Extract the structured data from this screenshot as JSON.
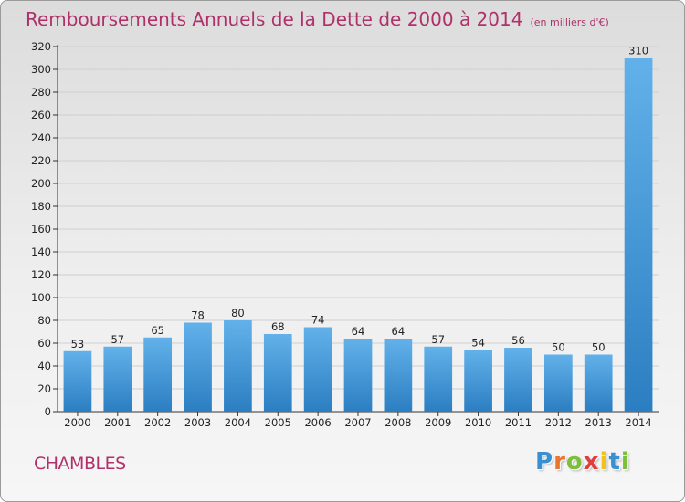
{
  "title": {
    "main": "Remboursements Annuels de la Dette de 2000 à 2014",
    "unit": "(en milliers d'€)"
  },
  "commune": "CHAMBLES",
  "logo": {
    "letters": [
      "P",
      "r",
      "o",
      "x",
      "i",
      "t",
      "i"
    ],
    "colors": [
      "#3a8fd0",
      "#e8762c",
      "#7bbf3a",
      "#e23d3d",
      "#f2c21b",
      "#3a8fd0",
      "#7bbf3a"
    ]
  },
  "colors": {
    "title": "#b0306a",
    "bar_top": "#62b1ea",
    "bar_bottom": "#2b7ec1",
    "grid": "#cfcfcf"
  },
  "chart_data": {
    "type": "bar",
    "title": "Remboursements Annuels de la Dette de 2000 à 2014",
    "xlabel": "",
    "ylabel": "",
    "ylim": [
      0,
      320
    ],
    "yticks": [
      0,
      20,
      40,
      60,
      80,
      100,
      120,
      140,
      160,
      180,
      200,
      220,
      240,
      260,
      280,
      300,
      320
    ],
    "grid": true,
    "categories": [
      "2000",
      "2001",
      "2002",
      "2003",
      "2004",
      "2005",
      "2006",
      "2007",
      "2008",
      "2009",
      "2010",
      "2011",
      "2012",
      "2013",
      "2014"
    ],
    "values": [
      53,
      57,
      65,
      78,
      80,
      68,
      74,
      64,
      64,
      57,
      54,
      56,
      50,
      50,
      310
    ]
  }
}
